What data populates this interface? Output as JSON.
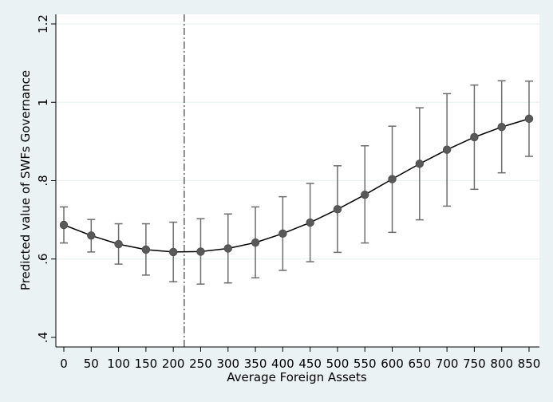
{
  "chart_data": {
    "type": "line",
    "title": "",
    "xlabel": "Average Foreign Assets",
    "ylabel": "Predicted value of SWFs Governance",
    "xlim": [
      0,
      850
    ],
    "ylim": [
      0.4,
      1.2
    ],
    "x_ticks": [
      {
        "value": 0,
        "label": "0"
      },
      {
        "value": 50,
        "label": "50"
      },
      {
        "value": 100,
        "label": "100"
      },
      {
        "value": 150,
        "label": "150"
      },
      {
        "value": 200,
        "label": "200"
      },
      {
        "value": 250,
        "label": "250"
      },
      {
        "value": 300,
        "label": "300"
      },
      {
        "value": 350,
        "label": "350"
      },
      {
        "value": 400,
        "label": "400"
      },
      {
        "value": 450,
        "label": "450"
      },
      {
        "value": 500,
        "label": "500"
      },
      {
        "value": 550,
        "label": "550"
      },
      {
        "value": 600,
        "label": "600"
      },
      {
        "value": 650,
        "label": "650"
      },
      {
        "value": 700,
        "label": "700"
      },
      {
        "value": 750,
        "label": "750"
      },
      {
        "value": 800,
        "label": "800"
      },
      {
        "value": 850,
        "label": "850"
      }
    ],
    "y_ticks": [
      {
        "value": 0.4,
        "label": ".4"
      },
      {
        "value": 0.6,
        "label": ".6"
      },
      {
        "value": 0.8,
        "label": ".8"
      },
      {
        "value": 1.0,
        "label": "1"
      },
      {
        "value": 1.2,
        "label": "1.2"
      }
    ],
    "grid": true,
    "reference_line": {
      "axis": "x",
      "value": 220,
      "style": "dash-dot"
    },
    "x": [
      0,
      50,
      100,
      150,
      200,
      250,
      300,
      350,
      400,
      450,
      500,
      550,
      600,
      650,
      700,
      750,
      800,
      850
    ],
    "series": [
      {
        "values": [
          0.687,
          0.66,
          0.638,
          0.624,
          0.618,
          0.619,
          0.627,
          0.642,
          0.665,
          0.693,
          0.727,
          0.764,
          0.804,
          0.843,
          0.879,
          0.911,
          0.937,
          0.958
        ],
        "ci_lower": [
          0.641,
          0.618,
          0.587,
          0.559,
          0.542,
          0.536,
          0.539,
          0.552,
          0.571,
          0.593,
          0.617,
          0.641,
          0.668,
          0.7,
          0.735,
          0.778,
          0.82,
          0.862
        ],
        "ci_upper": [
          0.733,
          0.701,
          0.69,
          0.69,
          0.694,
          0.703,
          0.715,
          0.733,
          0.759,
          0.793,
          0.838,
          0.889,
          0.939,
          0.986,
          1.022,
          1.044,
          1.055,
          1.054
        ]
      }
    ],
    "colors": {
      "background": "#eaf2f3",
      "plot_area": "#ffffff",
      "marker": "#595959",
      "line": "#000000",
      "error_bar": "#6d6d6d",
      "grid": "#eaf2f3",
      "reference_line": "#404040"
    }
  }
}
